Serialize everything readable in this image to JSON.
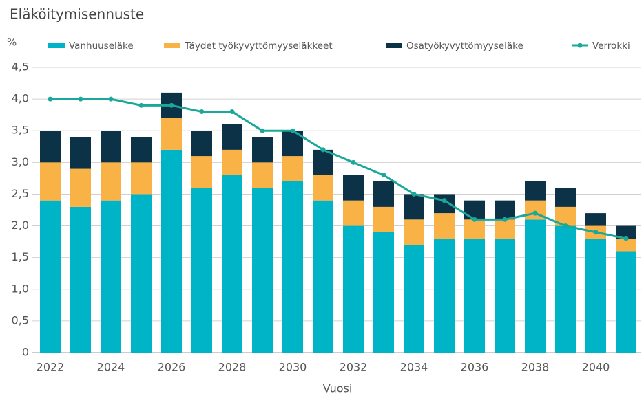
{
  "chart_data": {
    "type": "stacked-bar-line",
    "title": "Eläköitymisennuste",
    "ylabel": "%",
    "xlabel": "Vuosi",
    "categories": [
      "2022",
      null,
      "2024",
      null,
      "2026",
      null,
      "2028",
      null,
      "2030",
      null,
      "2032",
      null,
      "2034",
      null,
      "2036",
      null,
      "2038",
      null,
      "2040",
      null
    ],
    "series": [
      {
        "name": "Vanhuuseläke",
        "color": "#00b4c8",
        "kind": "bar",
        "values": [
          2.4,
          2.3,
          2.4,
          2.5,
          3.2,
          2.6,
          2.8,
          2.6,
          2.7,
          2.4,
          2.0,
          1.9,
          1.7,
          1.8,
          1.8,
          1.8,
          2.1,
          2.0,
          1.8,
          1.6
        ]
      },
      {
        "name": "Täydet työkyvyttömyyseläkkeet",
        "color": "#f8b246",
        "kind": "bar",
        "values": [
          0.6,
          0.6,
          0.6,
          0.5,
          0.5,
          0.5,
          0.4,
          0.4,
          0.4,
          0.4,
          0.4,
          0.4,
          0.4,
          0.4,
          0.3,
          0.3,
          0.3,
          0.3,
          0.2,
          0.2
        ]
      },
      {
        "name": "Osatyökyvyttömyyseläke",
        "color": "#0b3246",
        "kind": "bar",
        "values": [
          0.5,
          0.5,
          0.5,
          0.4,
          0.4,
          0.4,
          0.4,
          0.4,
          0.4,
          0.4,
          0.4,
          0.4,
          0.4,
          0.3,
          0.3,
          0.3,
          0.3,
          0.3,
          0.2,
          0.2
        ]
      },
      {
        "name": "Verrokki",
        "color": "#1aa89a",
        "kind": "line",
        "values": [
          4.0,
          4.0,
          4.0,
          3.9,
          3.9,
          3.8,
          3.8,
          3.5,
          3.5,
          3.2,
          3.0,
          2.8,
          2.5,
          2.4,
          2.1,
          2.1,
          2.2,
          2.0,
          1.9,
          1.8
        ]
      }
    ],
    "ylim": [
      0,
      4.5
    ],
    "yticks": [
      0,
      {
        "value": 0.5,
        "label": "0,5"
      },
      {
        "value": 1.0,
        "label": "1,0"
      },
      {
        "value": 1.5,
        "label": "1,5"
      },
      {
        "value": 2.0,
        "label": "2,0"
      },
      {
        "value": 2.5,
        "label": "2,5"
      },
      {
        "value": 3.0,
        "label": "3,0"
      },
      {
        "value": 3.5,
        "label": "3,5"
      },
      {
        "value": 4.0,
        "label": "4,0"
      },
      {
        "value": 4.5,
        "label": "4,5"
      }
    ],
    "grid": true,
    "legend": "top"
  }
}
